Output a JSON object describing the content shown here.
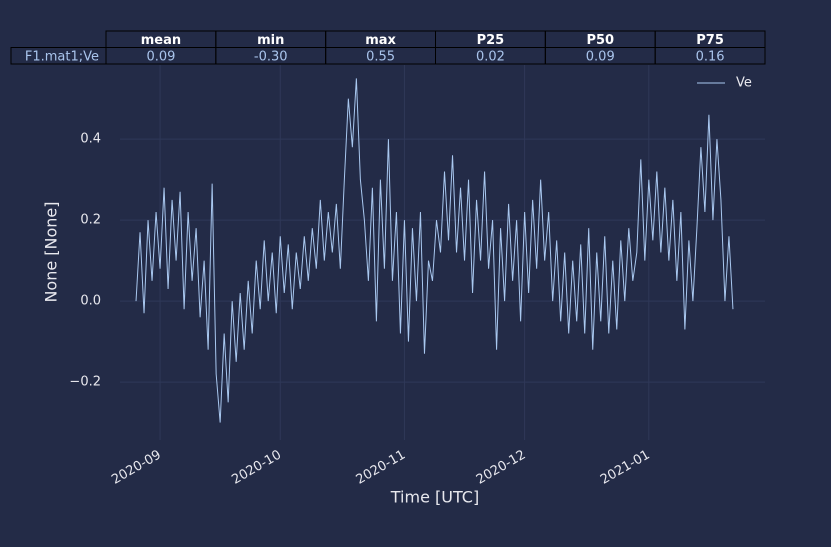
{
  "chart_data": {
    "type": "line",
    "xlabel": "Time [UTC]",
    "ylabel": "None [None]",
    "xlim": [
      -4,
      157
    ],
    "ylim": [
      -0.343,
      0.583
    ],
    "xticks": [
      {
        "value": 6,
        "label": "2020-09"
      },
      {
        "value": 36,
        "label": "2020-10"
      },
      {
        "value": 67,
        "label": "2020-11"
      },
      {
        "value": 97,
        "label": "2020-12"
      },
      {
        "value": 128,
        "label": "2021-01"
      }
    ],
    "yticks": [
      {
        "value": -0.2,
        "label": "−0.2"
      },
      {
        "value": 0,
        "label": "0.0"
      },
      0.2,
      0.4
    ],
    "grid": true,
    "legend": "upper right",
    "series": [
      {
        "name": "Ve",
        "color": "#a9c8f0",
        "values": [
          0.0,
          0.17,
          -0.03,
          0.2,
          0.05,
          0.22,
          0.08,
          0.28,
          0.03,
          0.25,
          0.1,
          0.27,
          -0.02,
          0.22,
          0.05,
          0.18,
          -0.04,
          0.1,
          -0.12,
          0.29,
          -0.18,
          -0.3,
          -0.08,
          -0.25,
          0.0,
          -0.15,
          0.02,
          -0.12,
          0.05,
          -0.08,
          0.1,
          -0.02,
          0.15,
          0.0,
          0.12,
          -0.03,
          0.16,
          0.02,
          0.14,
          -0.02,
          0.12,
          0.03,
          0.16,
          0.05,
          0.18,
          0.08,
          0.25,
          0.1,
          0.22,
          0.12,
          0.24,
          0.08,
          0.3,
          0.5,
          0.38,
          0.55,
          0.3,
          0.2,
          0.05,
          0.28,
          -0.05,
          0.3,
          0.08,
          0.4,
          0.05,
          0.22,
          -0.08,
          0.2,
          -0.1,
          0.18,
          0.0,
          0.22,
          -0.13,
          0.1,
          0.05,
          0.2,
          0.12,
          0.32,
          0.15,
          0.36,
          0.12,
          0.28,
          0.1,
          0.3,
          0.02,
          0.25,
          0.1,
          0.32,
          0.08,
          0.2,
          -0.12,
          0.18,
          0.0,
          0.24,
          0.05,
          0.2,
          -0.05,
          0.22,
          0.02,
          0.25,
          0.08,
          0.3,
          0.1,
          0.22,
          0.0,
          0.15,
          -0.05,
          0.12,
          -0.08,
          0.1,
          -0.05,
          0.14,
          -0.08,
          0.18,
          -0.12,
          0.12,
          -0.05,
          0.16,
          -0.08,
          0.1,
          -0.07,
          0.15,
          0.0,
          0.18,
          0.05,
          0.12,
          0.35,
          0.1,
          0.3,
          0.15,
          0.32,
          0.12,
          0.28,
          0.1,
          0.25,
          0.05,
          0.22,
          -0.07,
          0.15,
          0.0,
          0.18,
          0.38,
          0.22,
          0.46,
          0.2,
          0.4,
          0.25,
          0.0,
          0.16,
          -0.02
        ]
      }
    ]
  },
  "stats_table": {
    "columns": [
      "mean",
      "min",
      "max",
      "P25",
      "P50",
      "P75"
    ],
    "rows": [
      {
        "label": "F1.mat1;Ve",
        "cells": [
          "0.09",
          "-0.30",
          "0.55",
          "0.02",
          "0.09",
          "0.16"
        ]
      }
    ]
  }
}
